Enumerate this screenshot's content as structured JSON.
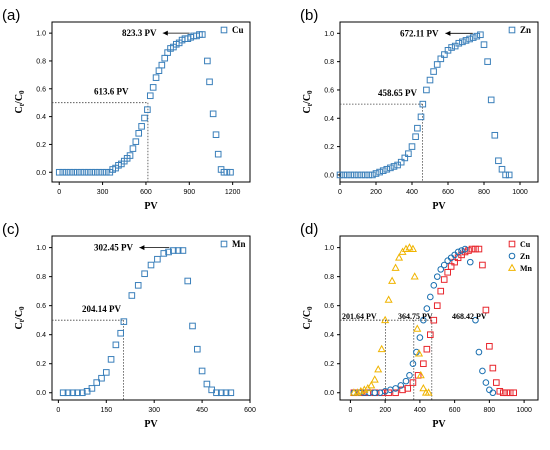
{
  "chart_data": [
    {
      "panel": "(a)",
      "type": "scatter",
      "xlabel": "PV",
      "ylabel": "C_t/C_0",
      "xlim": [
        -50,
        1320
      ],
      "ylim": [
        -0.07,
        1.08
      ],
      "xticks": [
        0,
        300,
        600,
        900,
        1200
      ],
      "yticks": [
        0.0,
        0.2,
        0.4,
        0.6,
        0.8,
        1.0
      ],
      "legend": "top-right",
      "series": [
        {
          "name": "Cu",
          "marker": "square",
          "color": "#3a7fba",
          "points": [
            [
              0,
              0.0
            ],
            [
              25,
              0.0
            ],
            [
              50,
              0.0
            ],
            [
              75,
              0.0
            ],
            [
              100,
              0.0
            ],
            [
              125,
              0.0
            ],
            [
              150,
              0.0
            ],
            [
              175,
              0.0
            ],
            [
              200,
              0.0
            ],
            [
              225,
              0.0
            ],
            [
              250,
              0.0
            ],
            [
              275,
              0.0
            ],
            [
              300,
              0.0
            ],
            [
              325,
              0.0
            ],
            [
              350,
              0.0
            ],
            [
              370,
              0.02
            ],
            [
              390,
              0.03
            ],
            [
              410,
              0.05
            ],
            [
              430,
              0.06
            ],
            [
              450,
              0.08
            ],
            [
              470,
              0.1
            ],
            [
              490,
              0.12
            ],
            [
              510,
              0.17
            ],
            [
              530,
              0.22
            ],
            [
              550,
              0.28
            ],
            [
              570,
              0.33
            ],
            [
              590,
              0.39
            ],
            [
              610,
              0.45
            ],
            [
              630,
              0.55
            ],
            [
              650,
              0.61
            ],
            [
              670,
              0.68
            ],
            [
              690,
              0.73
            ],
            [
              710,
              0.77
            ],
            [
              730,
              0.82
            ],
            [
              750,
              0.86
            ],
            [
              770,
              0.89
            ],
            [
              790,
              0.9
            ],
            [
              810,
              0.92
            ],
            [
              830,
              0.93
            ],
            [
              850,
              0.95
            ],
            [
              870,
              0.96
            ],
            [
              890,
              0.96
            ],
            [
              910,
              0.97
            ],
            [
              930,
              0.98
            ],
            [
              950,
              0.98
            ],
            [
              970,
              0.99
            ],
            [
              990,
              0.99
            ],
            [
              1025,
              0.8
            ],
            [
              1040,
              0.65
            ],
            [
              1065,
              0.42
            ],
            [
              1085,
              0.27
            ],
            [
              1100,
              0.13
            ],
            [
              1120,
              0.02
            ],
            [
              1140,
              0.0
            ],
            [
              1160,
              0.0
            ],
            [
              1185,
              0.0
            ]
          ]
        }
      ],
      "annotations": [
        {
          "text": "823.3 PV",
          "kind": "arrow",
          "x": 823.3,
          "y": 1.0
        },
        {
          "text": "613.6 PV",
          "kind": "crosshair",
          "x": 613.6,
          "y": 0.5
        }
      ]
    },
    {
      "panel": "(b)",
      "type": "scatter",
      "xlabel": "PV",
      "ylabel": "C_t/C_0",
      "xlim": [
        0,
        1100
      ],
      "ylim": [
        -0.05,
        1.08
      ],
      "xticks": [
        0,
        200,
        400,
        600,
        800,
        1000
      ],
      "yticks": [
        0.0,
        0.2,
        0.4,
        0.6,
        0.8,
        1.0
      ],
      "legend": "top-right",
      "series": [
        {
          "name": "Zn",
          "marker": "square",
          "color": "#3a7fba",
          "points": [
            [
              0,
              0.0
            ],
            [
              20,
              0.0
            ],
            [
              40,
              0.0
            ],
            [
              60,
              0.0
            ],
            [
              80,
              0.0
            ],
            [
              100,
              0.0
            ],
            [
              120,
              0.0
            ],
            [
              140,
              0.0
            ],
            [
              160,
              0.0
            ],
            [
              180,
              0.0
            ],
            [
              200,
              0.01
            ],
            [
              220,
              0.02
            ],
            [
              240,
              0.03
            ],
            [
              260,
              0.04
            ],
            [
              280,
              0.05
            ],
            [
              300,
              0.06
            ],
            [
              320,
              0.07
            ],
            [
              340,
              0.09
            ],
            [
              360,
              0.12
            ],
            [
              380,
              0.15
            ],
            [
              400,
              0.2
            ],
            [
              420,
              0.27
            ],
            [
              430,
              0.33
            ],
            [
              450,
              0.41
            ],
            [
              460,
              0.5
            ],
            [
              480,
              0.6
            ],
            [
              500,
              0.67
            ],
            [
              520,
              0.73
            ],
            [
              540,
              0.78
            ],
            [
              560,
              0.82
            ],
            [
              580,
              0.85
            ],
            [
              600,
              0.88
            ],
            [
              620,
              0.9
            ],
            [
              640,
              0.91
            ],
            [
              660,
              0.93
            ],
            [
              680,
              0.94
            ],
            [
              700,
              0.95
            ],
            [
              720,
              0.96
            ],
            [
              740,
              0.97
            ],
            [
              760,
              0.98
            ],
            [
              780,
              0.99
            ],
            [
              800,
              0.92
            ],
            [
              820,
              0.8
            ],
            [
              840,
              0.53
            ],
            [
              860,
              0.28
            ],
            [
              880,
              0.1
            ],
            [
              900,
              0.04
            ],
            [
              920,
              0.0
            ],
            [
              940,
              0.0
            ]
          ]
        }
      ],
      "annotations": [
        {
          "text": "672.11 PV",
          "kind": "arrow",
          "x": 672.11,
          "y": 1.0
        },
        {
          "text": "458.65 PV",
          "kind": "crosshair",
          "x": 458.65,
          "y": 0.5
        }
      ]
    },
    {
      "panel": "(c)",
      "type": "scatter",
      "xlabel": "PV",
      "ylabel": "C_t/C_0",
      "xlim": [
        -20,
        600
      ],
      "ylim": [
        -0.05,
        1.08
      ],
      "xticks": [
        0,
        150,
        300,
        450,
        600
      ],
      "yticks": [
        0.0,
        0.2,
        0.4,
        0.6,
        0.8,
        1.0
      ],
      "legend": "top-right",
      "series": [
        {
          "name": "Mn",
          "marker": "square",
          "color": "#3a7fba",
          "points": [
            [
              15,
              0.0
            ],
            [
              30,
              0.0
            ],
            [
              45,
              0.0
            ],
            [
              60,
              0.0
            ],
            [
              75,
              0.0
            ],
            [
              90,
              0.01
            ],
            [
              105,
              0.03
            ],
            [
              120,
              0.07
            ],
            [
              135,
              0.1
            ],
            [
              150,
              0.14
            ],
            [
              165,
              0.23
            ],
            [
              180,
              0.33
            ],
            [
              195,
              0.41
            ],
            [
              205,
              0.49
            ],
            [
              230,
              0.67
            ],
            [
              250,
              0.74
            ],
            [
              270,
              0.82
            ],
            [
              290,
              0.88
            ],
            [
              310,
              0.92
            ],
            [
              330,
              0.96
            ],
            [
              345,
              0.97
            ],
            [
              360,
              0.98
            ],
            [
              375,
              0.98
            ],
            [
              390,
              0.98
            ],
            [
              405,
              0.77
            ],
            [
              420,
              0.46
            ],
            [
              435,
              0.3
            ],
            [
              450,
              0.15
            ],
            [
              465,
              0.06
            ],
            [
              480,
              0.02
            ],
            [
              495,
              0.0
            ],
            [
              510,
              0.0
            ],
            [
              525,
              0.0
            ],
            [
              540,
              0.0
            ]
          ]
        }
      ],
      "annotations": [
        {
          "text": "302.45 PV",
          "kind": "arrow",
          "x": 302.45,
          "y": 1.0
        },
        {
          "text": "204.14 PV",
          "kind": "crosshair",
          "x": 204.14,
          "y": 0.5
        }
      ]
    },
    {
      "panel": "(d)",
      "type": "scatter",
      "xlabel": "PV",
      "ylabel": "C_t/C_0",
      "xlim": [
        -60,
        1080
      ],
      "ylim": [
        -0.05,
        1.08
      ],
      "xticks": [
        0,
        200,
        400,
        600,
        800,
        1000
      ],
      "yticks": [
        0.0,
        0.2,
        0.4,
        0.6,
        0.8,
        1.0
      ],
      "legend": "top-right",
      "series": [
        {
          "name": "Cu",
          "marker": "square",
          "color": "#e8262d",
          "points": [
            [
              20,
              0.0
            ],
            [
              60,
              0.0
            ],
            [
              100,
              0.0
            ],
            [
              140,
              0.0
            ],
            [
              180,
              0.0
            ],
            [
              220,
              0.0
            ],
            [
              260,
              0.0
            ],
            [
              300,
              0.02
            ],
            [
              330,
              0.03
            ],
            [
              360,
              0.07
            ],
            [
              390,
              0.12
            ],
            [
              420,
              0.2
            ],
            [
              440,
              0.3
            ],
            [
              460,
              0.4
            ],
            [
              480,
              0.5
            ],
            [
              500,
              0.6
            ],
            [
              520,
              0.7
            ],
            [
              540,
              0.78
            ],
            [
              560,
              0.83
            ],
            [
              580,
              0.87
            ],
            [
              600,
              0.9
            ],
            [
              620,
              0.93
            ],
            [
              640,
              0.95
            ],
            [
              660,
              0.97
            ],
            [
              680,
              0.98
            ],
            [
              700,
              0.99
            ],
            [
              720,
              0.99
            ],
            [
              740,
              0.99
            ],
            [
              760,
              0.88
            ],
            [
              780,
              0.57
            ],
            [
              800,
              0.32
            ],
            [
              820,
              0.17
            ],
            [
              840,
              0.07
            ],
            [
              860,
              0.01
            ],
            [
              880,
              0.0
            ],
            [
              900,
              0.0
            ],
            [
              920,
              0.0
            ],
            [
              940,
              0.0
            ]
          ]
        },
        {
          "name": "Zn",
          "marker": "circle",
          "color": "#1a6fb0",
          "points": [
            [
              20,
              0.0
            ],
            [
              50,
              0.0
            ],
            [
              80,
              0.0
            ],
            [
              110,
              0.0
            ],
            [
              140,
              0.0
            ],
            [
              170,
              0.0
            ],
            [
              200,
              0.01
            ],
            [
              230,
              0.02
            ],
            [
              260,
              0.03
            ],
            [
              290,
              0.05
            ],
            [
              320,
              0.08
            ],
            [
              340,
              0.12
            ],
            [
              360,
              0.2
            ],
            [
              380,
              0.28
            ],
            [
              400,
              0.38
            ],
            [
              420,
              0.5
            ],
            [
              440,
              0.58
            ],
            [
              460,
              0.66
            ],
            [
              480,
              0.74
            ],
            [
              500,
              0.8
            ],
            [
              520,
              0.85
            ],
            [
              540,
              0.88
            ],
            [
              560,
              0.91
            ],
            [
              580,
              0.93
            ],
            [
              600,
              0.95
            ],
            [
              620,
              0.97
            ],
            [
              640,
              0.98
            ],
            [
              660,
              0.99
            ],
            [
              690,
              0.9
            ],
            [
              720,
              0.5
            ],
            [
              740,
              0.28
            ],
            [
              760,
              0.15
            ],
            [
              780,
              0.07
            ],
            [
              800,
              0.02
            ],
            [
              820,
              0.0
            ]
          ]
        },
        {
          "name": "Mn",
          "marker": "triangle",
          "color": "#f0b400",
          "points": [
            [
              20,
              0.0
            ],
            [
              40,
              0.0
            ],
            [
              60,
              0.01
            ],
            [
              80,
              0.02
            ],
            [
              100,
              0.03
            ],
            [
              120,
              0.05
            ],
            [
              140,
              0.09
            ],
            [
              160,
              0.16
            ],
            [
              180,
              0.3
            ],
            [
              200,
              0.5
            ],
            [
              220,
              0.64
            ],
            [
              240,
              0.77
            ],
            [
              260,
              0.86
            ],
            [
              280,
              0.93
            ],
            [
              300,
              0.97
            ],
            [
              320,
              0.99
            ],
            [
              340,
              1.0
            ],
            [
              360,
              0.99
            ],
            [
              370,
              0.8
            ],
            [
              385,
              0.44
            ],
            [
              395,
              0.27
            ],
            [
              405,
              0.12
            ],
            [
              420,
              0.03
            ],
            [
              435,
              0.0
            ],
            [
              450,
              0.0
            ]
          ]
        }
      ],
      "annotations": [
        {
          "text": "201.64 PV",
          "kind": "crosshair",
          "x": 201.64,
          "y": 0.5
        },
        {
          "text": "364.75 PV",
          "kind": "crosshair",
          "x": 364.75,
          "y": 0.5
        },
        {
          "text": "468.42 PV",
          "kind": "crosshair",
          "x": 468.42,
          "y": 0.5
        }
      ]
    }
  ]
}
